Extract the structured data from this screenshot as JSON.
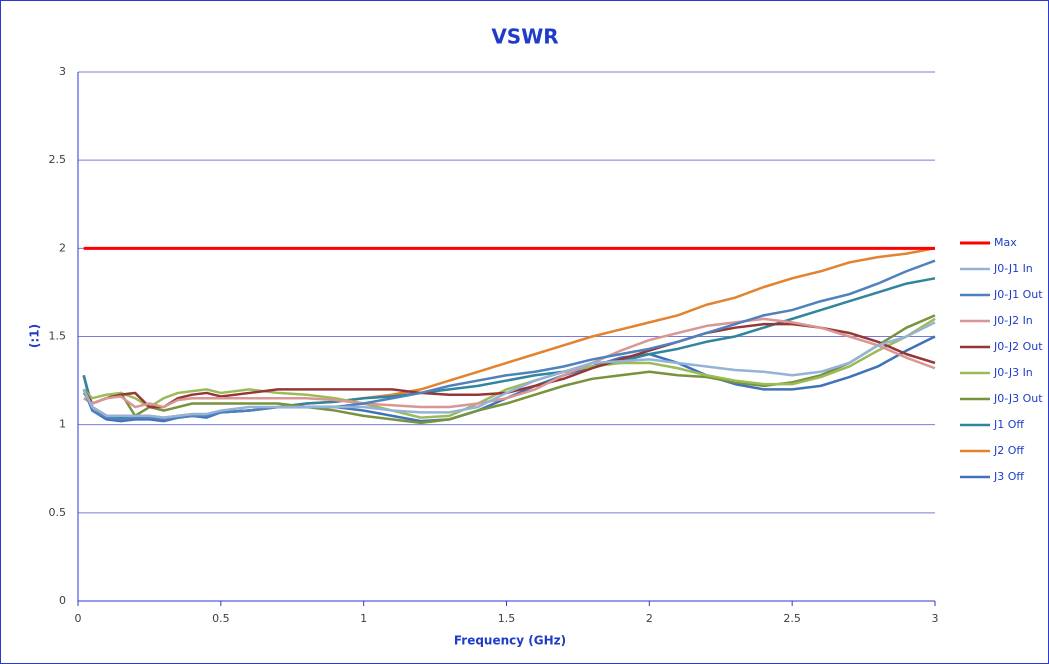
{
  "chart_data": {
    "type": "line",
    "title": "VSWR",
    "xlabel": "Frequency (GHz)",
    "ylabel": "(:1)",
    "x": [
      0.02,
      0.05,
      0.1,
      0.15,
      0.2,
      0.25,
      0.3,
      0.35,
      0.4,
      0.45,
      0.5,
      0.6,
      0.7,
      0.8,
      0.9,
      1.0,
      1.1,
      1.2,
      1.3,
      1.4,
      1.5,
      1.6,
      1.7,
      1.8,
      1.9,
      2.0,
      2.1,
      2.2,
      2.3,
      2.4,
      2.5,
      2.6,
      2.7,
      2.8,
      2.9,
      3.0
    ],
    "series": [
      {
        "name": "Max",
        "color": "#ff0000",
        "values": [
          2,
          2,
          2,
          2,
          2,
          2,
          2,
          2,
          2,
          2,
          2,
          2,
          2,
          2,
          2,
          2,
          2,
          2,
          2,
          2,
          2,
          2,
          2,
          2,
          2,
          2,
          2,
          2,
          2,
          2,
          2,
          2,
          2,
          2,
          2,
          2
        ]
      },
      {
        "name": "J0-J1 In",
        "color": "#95b3d7",
        "values": [
          1.2,
          1.1,
          1.05,
          1.05,
          1.05,
          1.05,
          1.04,
          1.05,
          1.06,
          1.06,
          1.08,
          1.1,
          1.1,
          1.1,
          1.1,
          1.1,
          1.08,
          1.07,
          1.07,
          1.1,
          1.18,
          1.25,
          1.3,
          1.35,
          1.36,
          1.37,
          1.35,
          1.33,
          1.31,
          1.3,
          1.28,
          1.3,
          1.35,
          1.45,
          1.5,
          1.58
        ]
      },
      {
        "name": "J0-J1 Out",
        "color": "#4f81bd",
        "values": [
          1.2,
          1.08,
          1.04,
          1.03,
          1.04,
          1.04,
          1.03,
          1.04,
          1.05,
          1.05,
          1.07,
          1.08,
          1.1,
          1.1,
          1.1,
          1.12,
          1.15,
          1.18,
          1.22,
          1.25,
          1.28,
          1.3,
          1.33,
          1.37,
          1.4,
          1.43,
          1.47,
          1.52,
          1.57,
          1.62,
          1.65,
          1.7,
          1.74,
          1.8,
          1.87,
          1.93
        ]
      },
      {
        "name": "J0-J2 In",
        "color": "#d99694",
        "values": [
          1.15,
          1.12,
          1.15,
          1.16,
          1.1,
          1.12,
          1.1,
          1.14,
          1.15,
          1.15,
          1.15,
          1.15,
          1.15,
          1.15,
          1.14,
          1.12,
          1.11,
          1.1,
          1.1,
          1.12,
          1.15,
          1.2,
          1.28,
          1.35,
          1.42,
          1.48,
          1.52,
          1.56,
          1.58,
          1.6,
          1.58,
          1.55,
          1.5,
          1.45,
          1.38,
          1.32
        ]
      },
      {
        "name": "J0-J2 Out",
        "color": "#953735",
        "values": [
          1.2,
          1.12,
          1.15,
          1.17,
          1.18,
          1.1,
          1.1,
          1.15,
          1.17,
          1.18,
          1.16,
          1.18,
          1.2,
          1.2,
          1.2,
          1.2,
          1.2,
          1.18,
          1.17,
          1.17,
          1.18,
          1.22,
          1.26,
          1.32,
          1.37,
          1.42,
          1.47,
          1.52,
          1.55,
          1.57,
          1.57,
          1.55,
          1.52,
          1.47,
          1.4,
          1.35
        ]
      },
      {
        "name": "J0-J3 In",
        "color": "#9bbb59",
        "values": [
          1.2,
          1.15,
          1.17,
          1.18,
          1.15,
          1.1,
          1.15,
          1.18,
          1.19,
          1.2,
          1.18,
          1.2,
          1.18,
          1.17,
          1.15,
          1.12,
          1.08,
          1.04,
          1.05,
          1.12,
          1.2,
          1.25,
          1.3,
          1.33,
          1.35,
          1.35,
          1.32,
          1.28,
          1.25,
          1.23,
          1.23,
          1.27,
          1.33,
          1.42,
          1.5,
          1.6
        ]
      },
      {
        "name": "J0-J3 Out",
        "color": "#77933c",
        "values": [
          1.18,
          1.12,
          1.15,
          1.18,
          1.05,
          1.1,
          1.08,
          1.1,
          1.12,
          1.12,
          1.12,
          1.12,
          1.12,
          1.1,
          1.08,
          1.05,
          1.03,
          1.01,
          1.03,
          1.08,
          1.12,
          1.17,
          1.22,
          1.26,
          1.28,
          1.3,
          1.28,
          1.27,
          1.24,
          1.22,
          1.24,
          1.28,
          1.35,
          1.45,
          1.55,
          1.62
        ]
      },
      {
        "name": "J1 Off",
        "color": "#31859c",
        "values": [
          1.28,
          1.1,
          1.05,
          1.04,
          1.04,
          1.04,
          1.03,
          1.04,
          1.05,
          1.05,
          1.07,
          1.08,
          1.1,
          1.12,
          1.13,
          1.15,
          1.16,
          1.18,
          1.2,
          1.22,
          1.25,
          1.28,
          1.3,
          1.33,
          1.36,
          1.4,
          1.43,
          1.47,
          1.5,
          1.55,
          1.6,
          1.65,
          1.7,
          1.75,
          1.8,
          1.83
        ]
      },
      {
        "name": "J2 Off",
        "color": "#e3822f",
        "values": [
          1.28,
          1.1,
          1.05,
          1.05,
          1.05,
          1.05,
          1.04,
          1.05,
          1.06,
          1.06,
          1.07,
          1.08,
          1.1,
          1.12,
          1.13,
          1.15,
          1.17,
          1.2,
          1.25,
          1.3,
          1.35,
          1.4,
          1.45,
          1.5,
          1.54,
          1.58,
          1.62,
          1.68,
          1.72,
          1.78,
          1.83,
          1.87,
          1.92,
          1.95,
          1.97,
          2.0
        ]
      },
      {
        "name": "J3 Off",
        "color": "#3f72b8",
        "values": [
          1.28,
          1.08,
          1.03,
          1.02,
          1.03,
          1.03,
          1.02,
          1.04,
          1.05,
          1.04,
          1.07,
          1.08,
          1.1,
          1.1,
          1.1,
          1.08,
          1.05,
          1.02,
          1.03,
          1.08,
          1.15,
          1.22,
          1.28,
          1.33,
          1.38,
          1.4,
          1.35,
          1.28,
          1.23,
          1.2,
          1.2,
          1.22,
          1.27,
          1.33,
          1.42,
          1.5
        ]
      }
    ],
    "xlim": [
      0,
      3
    ],
    "xticks": [
      0,
      0.5,
      1,
      1.5,
      2,
      2.5,
      3
    ],
    "ylim": [
      0,
      3
    ],
    "yticks": [
      0,
      0.5,
      1,
      1.5,
      2,
      2.5,
      3
    ],
    "grid": true,
    "legend": "right"
  }
}
